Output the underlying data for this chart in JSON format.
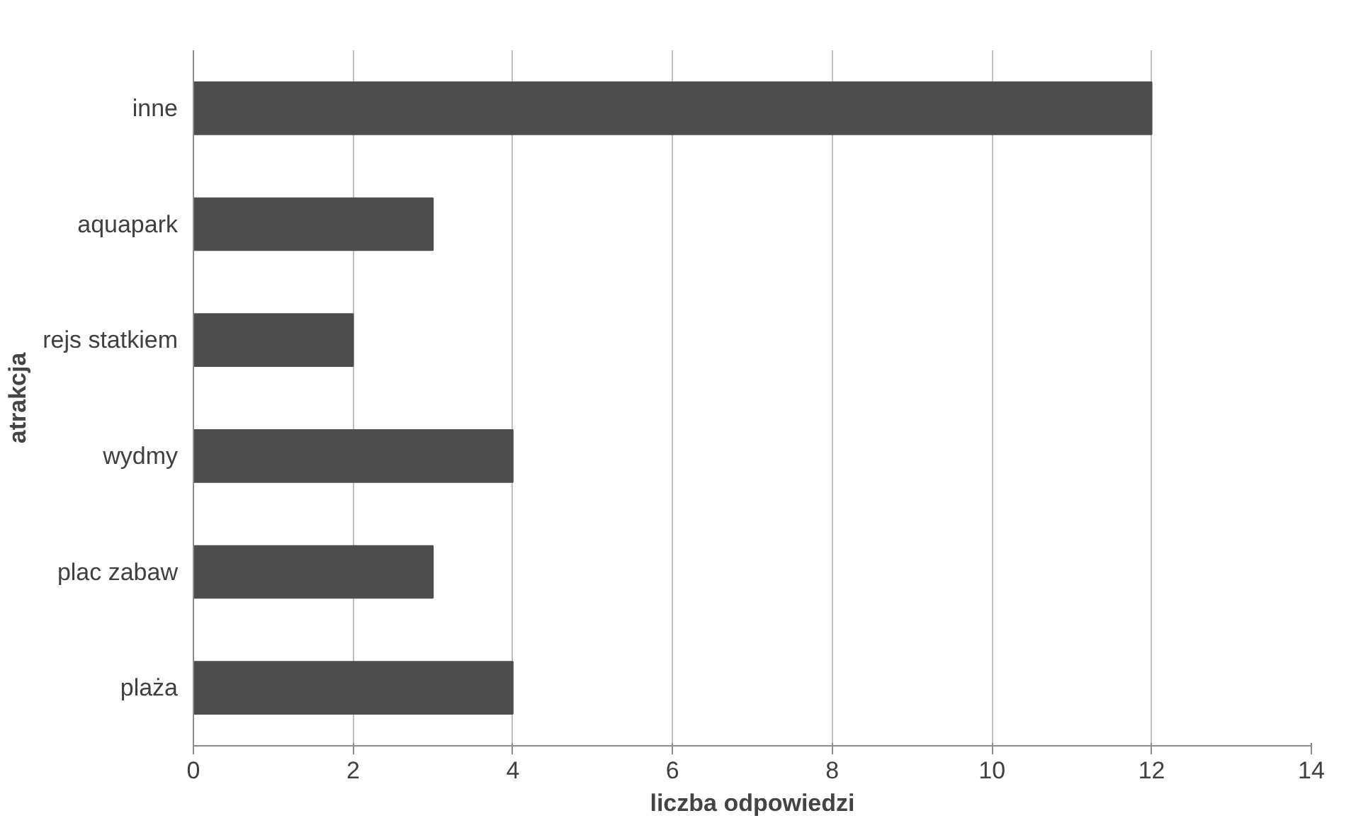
{
  "chart_data": {
    "type": "bar",
    "orientation": "horizontal",
    "xlabel": "liczba odpowiedzi",
    "ylabel": "atrakcja",
    "categories": [
      "inne",
      "aquapark",
      "rejs statkiem",
      "wydmy",
      "plac zabaw",
      "plaża"
    ],
    "values": [
      12,
      3,
      2,
      4,
      3,
      4
    ],
    "color": "#4d4d4d",
    "xlim": [
      0,
      14
    ],
    "xticks": [
      0,
      2,
      4,
      6,
      8,
      10,
      12,
      14
    ],
    "grid": "x"
  }
}
